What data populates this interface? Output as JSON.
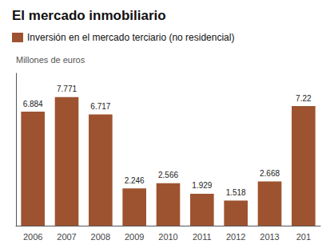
{
  "chart_data": {
    "type": "bar",
    "title": "El mercado inmobiliario",
    "ylabel": "Millones de euros",
    "categories": [
      "2006",
      "2007",
      "2008",
      "2009",
      "2010",
      "2011",
      "2012",
      "2013",
      "201"
    ],
    "series": [
      {
        "name": "Inversión en el mercado terciario (no residencial)",
        "color": "#9e5330",
        "values": [
          6.884,
          7.771,
          6.717,
          2.246,
          2.566,
          1.929,
          1.518,
          2.668,
          7.22
        ]
      }
    ],
    "ylim": [
      0,
      9.2
    ],
    "grid": false,
    "legend": "top-left",
    "data_labels": true,
    "tick_labels": "x"
  }
}
